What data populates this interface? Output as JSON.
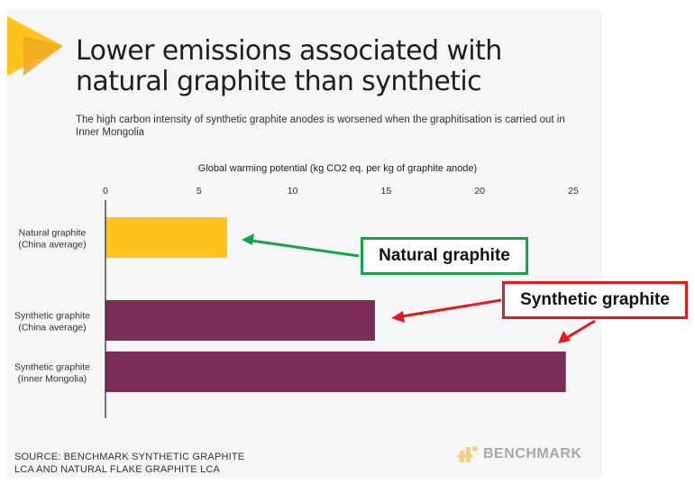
{
  "header": {
    "title": "Lower emissions associated with natural graphite than synthetic",
    "subtitle": "The high carbon intensity of synthetic graphite anodes is worsened when the graphitisation is carried out in Inner Mongolia"
  },
  "chart_data": {
    "type": "bar",
    "orientation": "horizontal",
    "xlabel": "Global warming potential (kg CO2 eq. per kg of graphite anode)",
    "xlim": [
      0,
      25
    ],
    "xticks": [
      "0",
      "5",
      "10",
      "15",
      "20",
      "25"
    ],
    "categories": [
      {
        "line1": "Natural graphite",
        "line2": "(China average)"
      },
      {
        "line1": "Synthetic graphite",
        "line2": "(China average)"
      },
      {
        "line1": "Synthetic graphite",
        "line2": "(Inner Mongolia)"
      }
    ],
    "values": [
      6.5,
      14.4,
      24.6
    ],
    "colors": [
      "#fcc41c",
      "#7a2e57",
      "#7a2e57"
    ],
    "grid": false,
    "legend": "none"
  },
  "annotations": {
    "natural_label": "Natural graphite",
    "synthetic_label": "Synthetic graphite",
    "natural_color": "#17a34a",
    "synthetic_color": "#e01b1b"
  },
  "footer": {
    "source_line1": "SOURCE: BENCHMARK SYNTHETIC GRAPHITE",
    "source_line2": "LCA AND NATURAL FLAKE GRAPHITE LCA",
    "brand": "BENCHMARK",
    "brand_icon": "benchmark-logo-icon"
  }
}
